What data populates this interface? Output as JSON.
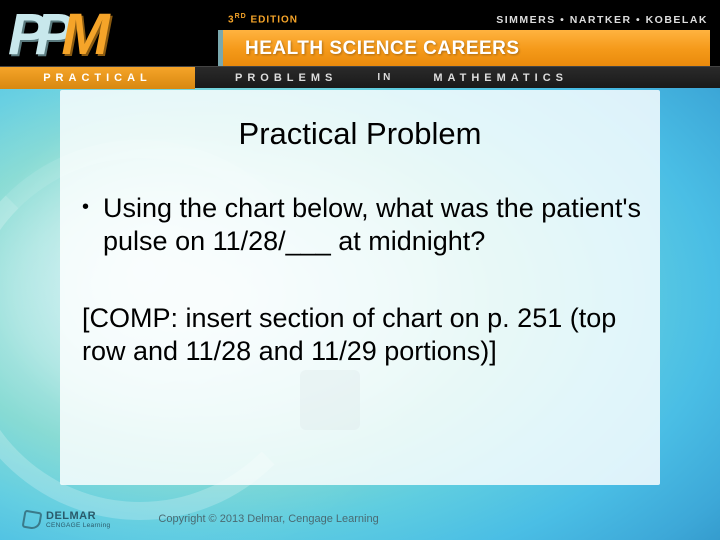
{
  "header": {
    "logo_p1": "P",
    "logo_p2": "P",
    "logo_m": "M",
    "edition": "3",
    "edition_suffix": "RD",
    "edition_word": "EDITION",
    "authors": "SIMMERS • NARTKER • KOBELAK",
    "title": "HEALTH SCIENCE CAREERS",
    "sub_practical": "PRACTICAL",
    "sub_problems": "PROBLEMS",
    "sub_in": "IN",
    "sub_math": "MATHEMATICS"
  },
  "slide": {
    "title": "Practical Problem",
    "bullet": "Using the chart below, what was the patient's pulse on 11/28/___ at midnight?",
    "comp_note": "[COMP: insert section of chart on p. 251 (top row and 11/28 and 11/29 portions)]"
  },
  "footer": {
    "publisher_name": "DELMAR",
    "publisher_sub": "CENGAGE Learning",
    "copyright": "Copyright © 2013 Delmar, Cengage Learning"
  },
  "colors": {
    "accent_orange": "#f5a429",
    "accent_teal": "#7ed8d0",
    "logo_light": "#c8e8ec"
  }
}
